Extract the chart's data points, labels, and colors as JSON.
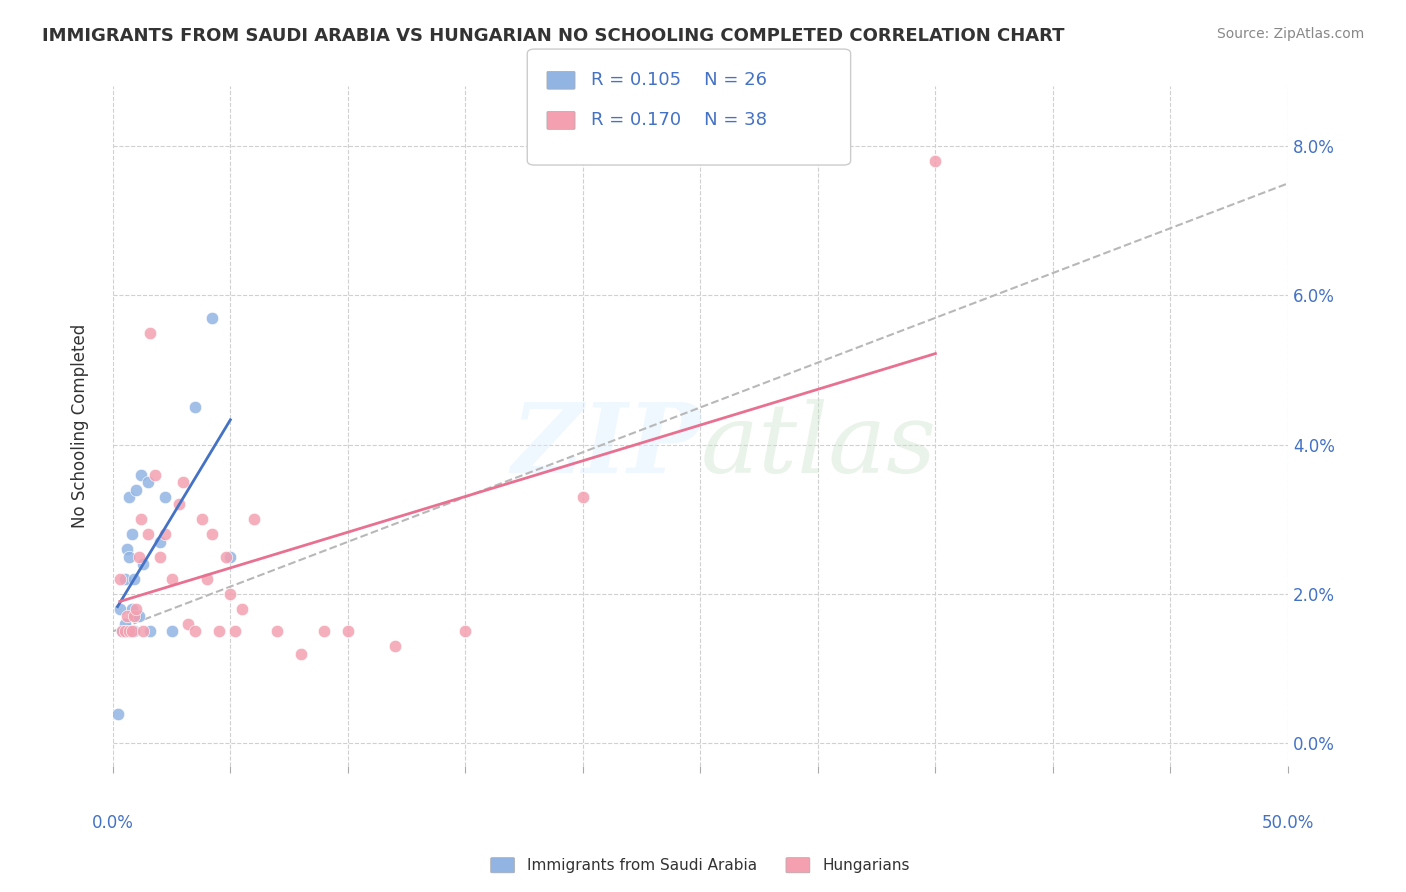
{
  "title": "IMMIGRANTS FROM SAUDI ARABIA VS HUNGARIAN NO SCHOOLING COMPLETED CORRELATION CHART",
  "source": "Source: ZipAtlas.com",
  "ylabel": "No Schooling Completed",
  "ytick_vals": [
    0.0,
    2.0,
    4.0,
    6.0,
    8.0
  ],
  "xlim": [
    0.0,
    50.0
  ],
  "ylim": [
    -0.3,
    8.8
  ],
  "legend_r1": "R = 0.105",
  "legend_n1": "N = 26",
  "legend_r2": "R = 0.170",
  "legend_n2": "N = 38",
  "color_blue": "#92b4e3",
  "color_pink": "#f4a0b0",
  "trendline_blue_color": "#4472c4",
  "trendline_pink_color": "#e87090",
  "trendline_gray_color": "#b8b8b8",
  "gray_y_start": 1.5,
  "gray_y_end": 7.5,
  "saudi_x": [
    0.3,
    0.4,
    0.5,
    0.5,
    0.6,
    0.6,
    0.7,
    0.7,
    0.8,
    0.8,
    0.9,
    0.9,
    1.0,
    1.0,
    1.1,
    1.2,
    1.3,
    1.5,
    1.6,
    2.0,
    2.2,
    2.5,
    3.5,
    4.2,
    5.0,
    0.2
  ],
  "saudi_y": [
    1.8,
    1.5,
    1.6,
    2.2,
    2.6,
    1.5,
    2.5,
    3.3,
    2.8,
    1.8,
    2.2,
    1.5,
    3.4,
    1.7,
    1.7,
    3.6,
    2.4,
    3.5,
    1.5,
    2.7,
    3.3,
    1.5,
    4.5,
    5.7,
    2.5,
    0.4
  ],
  "hungarian_x": [
    0.3,
    0.4,
    0.5,
    0.6,
    0.7,
    0.8,
    0.9,
    1.0,
    1.1,
    1.2,
    1.3,
    1.5,
    1.6,
    1.8,
    2.0,
    2.2,
    2.5,
    2.8,
    3.0,
    3.2,
    3.5,
    3.8,
    4.0,
    4.2,
    4.5,
    4.8,
    5.0,
    5.2,
    5.5,
    6.0,
    7.0,
    8.0,
    9.0,
    10.0,
    12.0,
    15.0,
    20.0,
    35.0
  ],
  "hungarian_y": [
    2.2,
    1.5,
    1.5,
    1.7,
    1.5,
    1.5,
    1.7,
    1.8,
    2.5,
    3.0,
    1.5,
    2.8,
    5.5,
    3.6,
    2.5,
    2.8,
    2.2,
    3.2,
    3.5,
    1.6,
    1.5,
    3.0,
    2.2,
    2.8,
    1.5,
    2.5,
    2.0,
    1.5,
    1.8,
    3.0,
    1.5,
    1.2,
    1.5,
    1.5,
    1.3,
    1.5,
    3.3,
    7.8
  ]
}
